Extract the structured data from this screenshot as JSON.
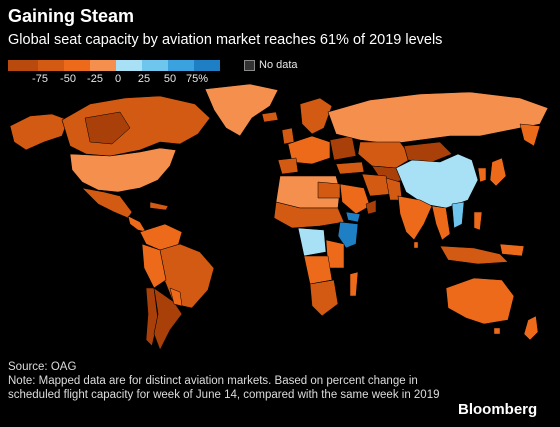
{
  "title": "Gaining Steam",
  "subtitle": "Global seat capacity by aviation market reaches 61% of 2019 levels",
  "legend": {
    "labels": [
      "-75",
      "-50",
      "-25",
      "0",
      "25",
      "50",
      "75%"
    ],
    "no_data_label": "No data",
    "colors": {
      "bin_1": "#b84a0d",
      "bin_2": "#d35a12",
      "bin_3": "#ec6a1a",
      "bin_4": "#f58f4e",
      "bin_5": "#a8e0f5",
      "bin_6": "#6ec6ee",
      "bin_7": "#3aa3df",
      "bin_8": "#1f7fc4",
      "no_data": "#333333"
    }
  },
  "map": {
    "colors": {
      "darkest_orange": "#a9400a",
      "dark_orange": "#d35a12",
      "orange": "#ec6a1a",
      "light_orange": "#f58f4e",
      "light_blue": "#a8e0f5",
      "mid_blue": "#6ec6ee",
      "dark_blue": "#1f7fc4"
    }
  },
  "source": "Source: OAG",
  "note": "Note: Mapped data are for distinct aviation markets. Based on percent change in scheduled flight capacity for week of June 14, compared with the same week in 2019",
  "brand": "Bloomberg"
}
